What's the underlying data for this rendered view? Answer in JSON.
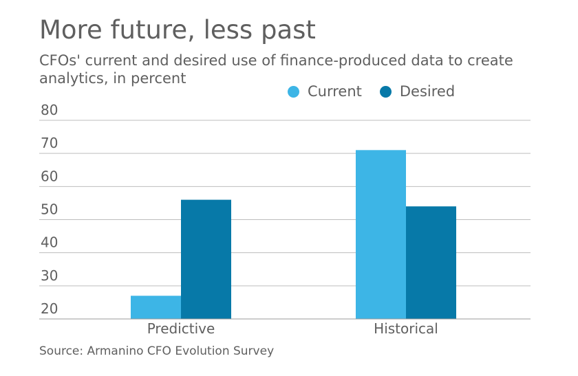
{
  "chart_data": {
    "type": "bar",
    "title": "More future, less past",
    "subtitle": "CFOs' current and desired use of finance-produced data to create analytics, in percent",
    "source": "Source: Armanino CFO Evolution Survey",
    "categories": [
      "Predictive",
      "Historical"
    ],
    "series": [
      {
        "name": "Current",
        "values": [
          27,
          71
        ],
        "color": "#3db5e6"
      },
      {
        "name": "Desired",
        "values": [
          56,
          54
        ],
        "color": "#0779a8"
      }
    ],
    "yticks": [
      20,
      30,
      40,
      50,
      60,
      70,
      80
    ],
    "ylim": [
      20,
      80
    ],
    "grid": true,
    "legend_position": "top-right"
  }
}
